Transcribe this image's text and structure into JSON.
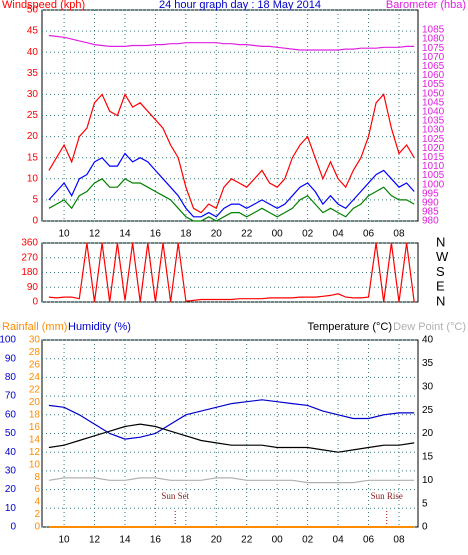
{
  "chart_data": [
    {
      "type": "line",
      "title": "24 hour graph day : 18 May 2014",
      "ylabel": "Windspeed (kph)",
      "x": [
        9,
        9.5,
        10,
        10.5,
        11,
        11.5,
        12,
        12.5,
        13,
        13.5,
        14,
        14.5,
        15,
        15.5,
        16,
        16.5,
        17,
        17.5,
        18,
        18.5,
        19,
        19.5,
        20,
        20.5,
        21,
        21.5,
        22,
        22.5,
        23,
        23.5,
        24,
        24.5,
        25,
        25.5,
        26,
        26.5,
        27,
        27.5,
        28,
        28.5,
        29,
        29.5,
        30,
        30.5,
        31,
        31.5,
        32,
        32.5,
        33
      ],
      "xlim": [
        8.55,
        33.25
      ],
      "xticks": [
        10,
        12,
        14,
        16,
        18,
        20,
        22,
        {
          "value": 24,
          "label": "00"
        },
        {
          "value": 26,
          "label": "02"
        },
        {
          "value": 28,
          "label": "04"
        },
        {
          "value": 30,
          "label": "06"
        },
        {
          "value": 32,
          "label": "08"
        }
      ],
      "ylim": [
        0,
        50
      ],
      "yticks": [
        0,
        5,
        10,
        15,
        20,
        25,
        30,
        35,
        40,
        45,
        50
      ],
      "y2lim": [
        980,
        1096
      ],
      "y2ticks": [
        980,
        985,
        990,
        995,
        1000,
        1005,
        1010,
        1015,
        1020,
        1025,
        1030,
        1035,
        1040,
        1045,
        1050,
        1055,
        1060,
        1065,
        1070,
        1075,
        1080,
        1085
      ],
      "grid": true,
      "series": [
        {
          "color": "#ff0000",
          "values": [
            12,
            15,
            18,
            14,
            20,
            22,
            28,
            30,
            26,
            25,
            30,
            27,
            28,
            26,
            24,
            22,
            18,
            15,
            8,
            3,
            2,
            4,
            3,
            8,
            10,
            9,
            8,
            10,
            12,
            9,
            8,
            10,
            15,
            18,
            20,
            15,
            10,
            14,
            10,
            8,
            12,
            15,
            20,
            28,
            30,
            22,
            16,
            18,
            15
          ]
        },
        {
          "color": "#008000",
          "values": [
            3,
            4,
            5,
            3,
            6,
            7,
            9,
            10,
            8,
            8,
            10,
            9,
            9,
            8,
            7,
            6,
            5,
            3,
            1,
            0,
            0,
            1,
            0,
            1,
            2,
            2,
            1,
            2,
            3,
            2,
            1,
            2,
            3,
            5,
            6,
            4,
            2,
            3,
            2,
            1,
            3,
            4,
            6,
            7,
            8,
            6,
            5,
            5,
            4
          ]
        },
        {
          "color": "#0000ff",
          "values": [
            5,
            7,
            9,
            6,
            10,
            11,
            14,
            15,
            13,
            13,
            16,
            14,
            15,
            14,
            12,
            10,
            8,
            6,
            3,
            1,
            1,
            2,
            1,
            3,
            4,
            4,
            3,
            4,
            5,
            4,
            3,
            4,
            6,
            8,
            9,
            7,
            4,
            6,
            4,
            3,
            5,
            7,
            9,
            11,
            12,
            10,
            8,
            9,
            7
          ]
        },
        {
          "name": "Barometer (hba)",
          "color": "#e020e0",
          "axis": "y2",
          "values": [
            1082,
            1081.5,
            1081,
            1080,
            1079,
            1078,
            1077,
            1076.5,
            1076,
            1076,
            1076,
            1076.5,
            1076.5,
            1076.5,
            1077,
            1077,
            1077.5,
            1077.5,
            1078,
            1078,
            1078,
            1078,
            1078,
            1077.5,
            1077.5,
            1077,
            1077,
            1076.5,
            1076,
            1076,
            1075.5,
            1075,
            1074.5,
            1074,
            1074,
            1074,
            1074,
            1074,
            1074,
            1074.5,
            1074.5,
            1075,
            1075,
            1075,
            1075.5,
            1075.5,
            1075.5,
            1076,
            1076
          ]
        }
      ]
    },
    {
      "type": "line",
      "x": [
        9,
        9.5,
        10,
        10.5,
        11,
        11.5,
        12,
        12.5,
        13,
        13.5,
        14,
        14.5,
        15,
        15.5,
        16,
        16.5,
        17,
        17.5,
        18,
        18.5,
        19,
        19.5,
        20,
        20.5,
        21,
        21.5,
        22,
        22.5,
        23,
        23.5,
        24,
        24.5,
        25,
        25.5,
        26,
        26.5,
        27,
        27.5,
        28,
        28.5,
        29,
        29.5,
        30,
        30.5,
        31,
        31.5,
        32,
        32.5,
        33
      ],
      "xlim": [
        8.55,
        33.25
      ],
      "ylim": [
        0,
        360
      ],
      "yticks": [
        0,
        90,
        180,
        270,
        360
      ],
      "y2lim": [
        0,
        360
      ],
      "y2ticks": [
        {
          "value": 0,
          "label": "N"
        },
        {
          "value": 90,
          "label": "E"
        },
        {
          "value": 180,
          "label": "S"
        },
        {
          "value": 270,
          "label": "W"
        },
        {
          "value": 360,
          "label": "N"
        }
      ],
      "grid": true,
      "series": [
        {
          "color": "#ff0000",
          "values": [
            30,
            25,
            30,
            30,
            20,
            360,
            0,
            360,
            0,
            360,
            10,
            360,
            0,
            360,
            0,
            360,
            0,
            360,
            5,
            10,
            15,
            15,
            15,
            15,
            15,
            20,
            20,
            20,
            20,
            25,
            25,
            25,
            25,
            30,
            30,
            30,
            35,
            40,
            50,
            30,
            25,
            25,
            30,
            360,
            0,
            360,
            0,
            360,
            0
          ]
        }
      ]
    },
    {
      "type": "line",
      "x": [
        9,
        10,
        11,
        12,
        13,
        14,
        15,
        16,
        17,
        18,
        19,
        20,
        21,
        22,
        23,
        24,
        25,
        26,
        27,
        28,
        29,
        30,
        31,
        32,
        33
      ],
      "xlim": [
        8.55,
        33.25
      ],
      "xticks": [
        10,
        12,
        14,
        16,
        18,
        20,
        22,
        {
          "value": 24,
          "label": "00"
        },
        {
          "value": 26,
          "label": "02"
        },
        {
          "value": 28,
          "label": "04"
        },
        {
          "value": 30,
          "label": "06"
        },
        {
          "value": 32,
          "label": "08"
        }
      ],
      "ylim": [
        0,
        100
      ],
      "yticks": [
        0,
        10,
        20,
        30,
        40,
        50,
        60,
        70,
        80,
        90,
        100
      ],
      "y2lim": [
        0,
        40
      ],
      "y2ticks": [
        0,
        5,
        10,
        15,
        20,
        25,
        30,
        35,
        40
      ],
      "y3lim": [
        0,
        30
      ],
      "y3ticks": [
        0,
        2,
        4,
        6,
        8,
        10,
        12,
        14,
        16,
        18,
        20,
        22,
        24,
        26,
        28,
        30
      ],
      "grid": true,
      "series": [
        {
          "name": "Humidity (%)",
          "color": "#0000cc",
          "values": [
            65,
            64,
            60,
            55,
            50,
            47,
            48,
            50,
            55,
            60,
            62,
            64,
            66,
            67,
            68,
            67,
            66,
            65,
            62,
            60,
            58,
            58,
            60,
            61,
            61
          ]
        },
        {
          "name": "Temperature (°C)",
          "color": "#000000",
          "axis": "y2",
          "values": [
            17,
            17.5,
            18.5,
            19.5,
            20.5,
            21.5,
            22,
            21.5,
            20.5,
            19.5,
            18.5,
            18,
            17.5,
            17.5,
            17.5,
            17,
            17,
            17,
            16.5,
            16,
            16.5,
            17,
            17.5,
            17.5,
            18
          ]
        },
        {
          "name": "Dew Point (°C)",
          "color": "#b0b0b0",
          "axis": "y2",
          "values": [
            10,
            10.5,
            10.5,
            10.5,
            10,
            10,
            10.5,
            10.5,
            10,
            10,
            10,
            10.5,
            10.5,
            10,
            10,
            10,
            10,
            9.5,
            9.5,
            9.5,
            9.5,
            10,
            10,
            10,
            10
          ]
        },
        {
          "name": "Rainfall (mm)",
          "color": "#ff8c00",
          "axis": "y3",
          "values": [
            0,
            0,
            0,
            0,
            0,
            0,
            0,
            0,
            0,
            0,
            0,
            0,
            0,
            0,
            0,
            0,
            0,
            0,
            0,
            0,
            0,
            0,
            0,
            0,
            0
          ]
        }
      ],
      "annotations": [
        {
          "text": "Sun Set",
          "x": 17.3
        },
        {
          "text": "Sun Rise",
          "x": 31.2
        }
      ]
    }
  ]
}
